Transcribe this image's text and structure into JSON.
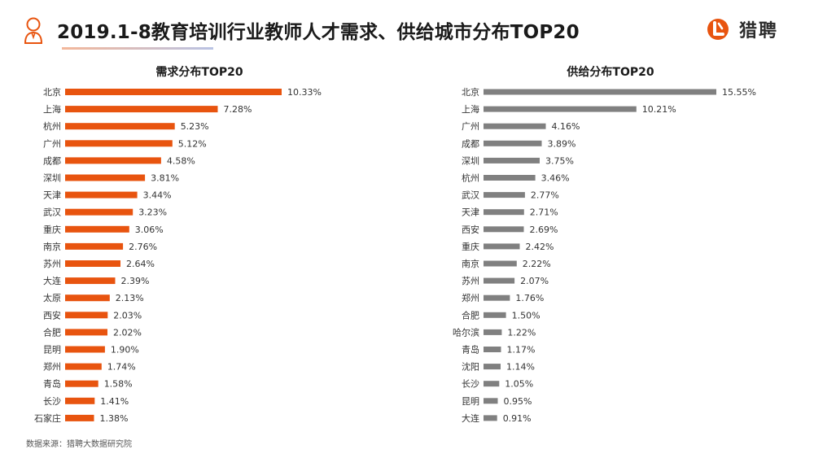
{
  "header": {
    "title": "2019.1-8教育培训行业教师人才需求、供给城市分布TOP20",
    "logo_text": "猎聘",
    "icon": "person-icon",
    "logo_icon": "liepin-logo-icon",
    "accent_color": "#e8540f",
    "supply_color": "#808080"
  },
  "chart_data": [
    {
      "type": "bar",
      "orientation": "horizontal",
      "title": "需求分布TOP20",
      "categories": [
        "北京",
        "上海",
        "杭州",
        "广州",
        "成都",
        "深圳",
        "天津",
        "武汉",
        "重庆",
        "南京",
        "苏州",
        "大连",
        "太原",
        "西安",
        "合肥",
        "昆明",
        "郑州",
        "青岛",
        "长沙",
        "石家庄"
      ],
      "values": [
        10.33,
        7.28,
        5.23,
        5.12,
        4.58,
        3.81,
        3.44,
        3.23,
        3.06,
        2.76,
        2.64,
        2.39,
        2.13,
        2.03,
        2.02,
        1.9,
        1.74,
        1.58,
        1.41,
        1.38
      ],
      "value_labels": [
        "10.33%",
        "7.28%",
        "5.23%",
        "5.12%",
        "4.58%",
        "3.81%",
        "3.44%",
        "3.23%",
        "3.06%",
        "2.76%",
        "2.64%",
        "2.39%",
        "2.13%",
        "2.03%",
        "2.02%",
        "1.90%",
        "1.74%",
        "1.58%",
        "1.41%",
        "1.38%"
      ],
      "color": "#e8540f",
      "xlim": [
        0,
        10.33
      ],
      "grid": false,
      "legend": "none"
    },
    {
      "type": "bar",
      "orientation": "horizontal",
      "title": "供给分布TOP20",
      "categories": [
        "北京",
        "上海",
        "广州",
        "成都",
        "深圳",
        "杭州",
        "武汉",
        "天津",
        "西安",
        "重庆",
        "南京",
        "苏州",
        "郑州",
        "合肥",
        "哈尔滨",
        "青岛",
        "沈阳",
        "长沙",
        "昆明",
        "大连"
      ],
      "values": [
        15.55,
        10.21,
        4.16,
        3.89,
        3.75,
        3.46,
        2.77,
        2.71,
        2.69,
        2.42,
        2.22,
        2.07,
        1.76,
        1.5,
        1.22,
        1.17,
        1.14,
        1.05,
        0.95,
        0.91
      ],
      "value_labels": [
        "15.55%",
        "10.21%",
        "4.16%",
        "3.89%",
        "3.75%",
        "3.46%",
        "2.77%",
        "2.71%",
        "2.69%",
        "2.42%",
        "2.22%",
        "2.07%",
        "1.76%",
        "1.50%",
        "1.22%",
        "1.17%",
        "1.14%",
        "1.05%",
        "0.95%",
        "0.91%"
      ],
      "color": "#808080",
      "xlim": [
        0,
        15.55
      ],
      "grid": false,
      "legend": "none"
    }
  ],
  "footer": {
    "source": "数据来源：猎聘大数据研究院"
  }
}
